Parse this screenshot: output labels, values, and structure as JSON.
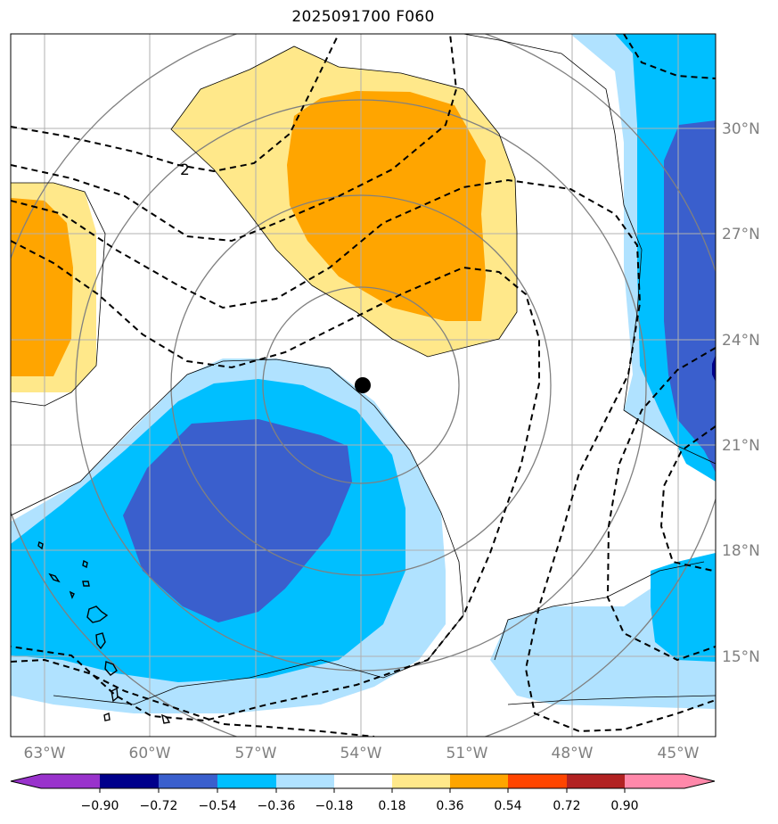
{
  "title": "2025091700 F060",
  "map": {
    "lon_labels": [
      "63°W",
      "60°W",
      "57°W",
      "54°W",
      "51°W",
      "48°W",
      "45°W"
    ],
    "lat_labels": [
      "30°N",
      "27°N",
      "24°N",
      "21°N",
      "18°N",
      "15°N"
    ],
    "contour_label": "2",
    "storm_center": {
      "lon": "54°W",
      "lat": "22.7°N"
    }
  },
  "colorbar": {
    "labels": [
      "−0.90",
      "−0.72",
      "−0.54",
      "−0.36",
      "−0.18",
      "0.18",
      "0.36",
      "0.54",
      "0.72",
      "0.90"
    ],
    "colors": [
      "#9932cc",
      "#00008b",
      "#3a5fcd",
      "#00bfff",
      "#b0e2ff",
      "#ffffff",
      "#ffe88a",
      "#ffa500",
      "#ff4500",
      "#b22222",
      "#ff88aa"
    ],
    "extend": "both"
  }
}
